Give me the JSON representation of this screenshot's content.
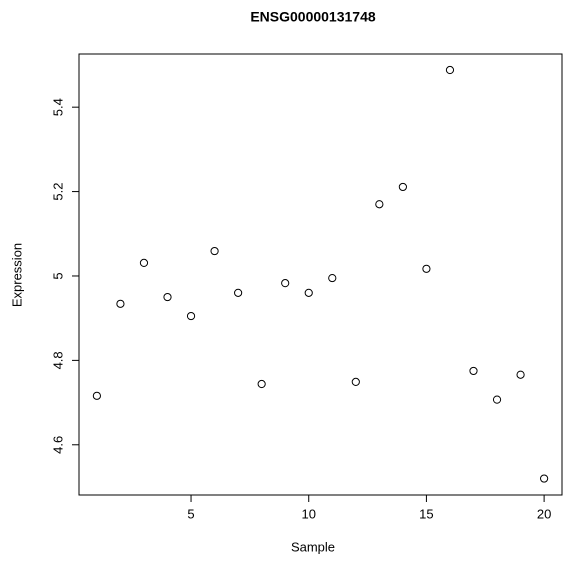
{
  "chart_data": {
    "type": "scatter",
    "title": "ENSG00000131748",
    "x_label": "Sample",
    "y_label": "Expression",
    "x": [
      1,
      2,
      3,
      4,
      5,
      6,
      7,
      8,
      9,
      10,
      11,
      12,
      13,
      14,
      15,
      16,
      17,
      18,
      19,
      20
    ],
    "values": [
      4.716,
      4.934,
      5.031,
      4.95,
      4.905,
      5.059,
      4.96,
      4.744,
      4.983,
      4.96,
      4.995,
      4.749,
      5.17,
      5.211,
      5.017,
      5.488,
      4.775,
      4.707,
      4.766,
      4.52
    ],
    "color": "#000000",
    "xlim": [
      0.24,
      20.76
    ],
    "xticks": [
      5,
      10,
      15,
      20
    ],
    "ylim": [
      4.481,
      5.526
    ],
    "yticks": [
      4.6,
      4.8,
      5.0,
      5.2,
      5.4
    ]
  }
}
